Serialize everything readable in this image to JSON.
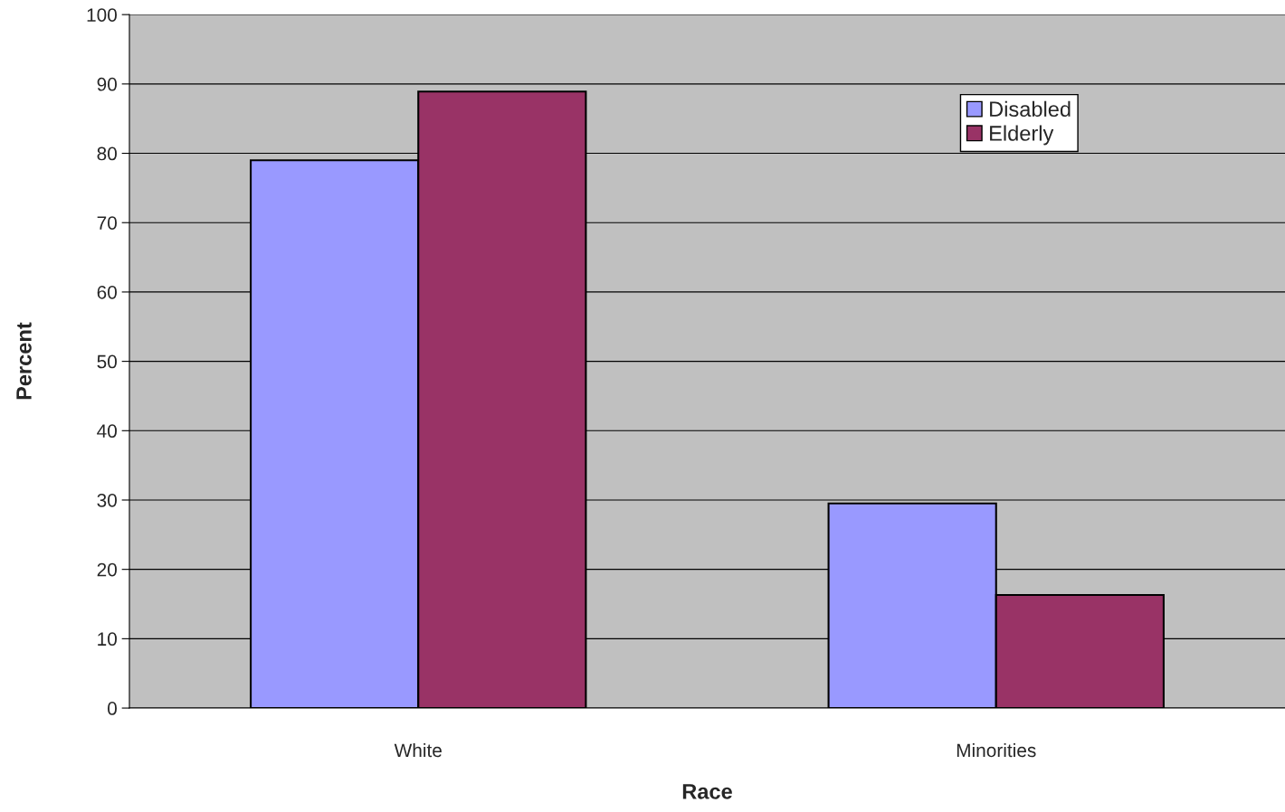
{
  "chart_data": {
    "type": "bar",
    "xlabel": "Race",
    "ylabel": "Percent",
    "categories": [
      "White",
      "Minorities"
    ],
    "series": [
      {
        "name": "Disabled",
        "color": "#9999ff",
        "values": [
          79,
          29.5
        ]
      },
      {
        "name": "Elderly",
        "color": "#993366",
        "values": [
          88.9,
          16.3
        ]
      }
    ],
    "ylim": [
      0,
      100
    ],
    "yticks": [
      0,
      10,
      20,
      30,
      40,
      50,
      60,
      70,
      80,
      90,
      100
    ],
    "grid": "y",
    "legend": "top right"
  }
}
